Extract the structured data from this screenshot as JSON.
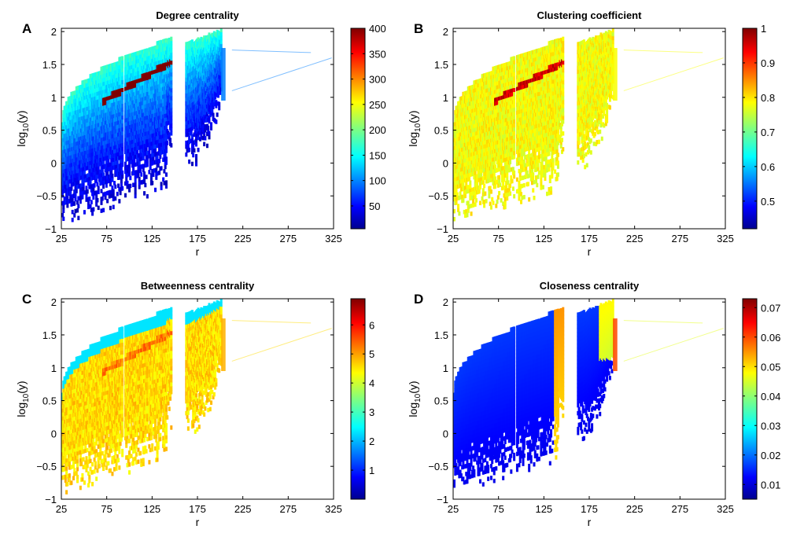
{
  "chart_data": [
    {
      "type": "heatmap",
      "panel_label": "A",
      "title": "Degree centrality",
      "xlabel": "r",
      "ylabel": "log10(y)",
      "xlim": [
        25,
        325
      ],
      "ylim": [
        -1,
        2.05
      ],
      "xticks": [
        "25",
        "75",
        "125",
        "175",
        "225",
        "275",
        "325"
      ],
      "yticks": [
        "-1",
        "-0.5",
        "0",
        "0.5",
        "1",
        "1.5",
        "2"
      ],
      "colorbar": {
        "min": 5,
        "max": 400,
        "ticks": [
          "50",
          "100",
          "150",
          "200",
          "250",
          "300",
          "350",
          "400"
        ],
        "tick_values": [
          50,
          100,
          150,
          200,
          250,
          300,
          350,
          400
        ]
      },
      "colormap": "jet",
      "base_value_fraction": 0.25,
      "band_boost_fraction": 0.75,
      "high_region": "bifurcation ridges"
    },
    {
      "type": "heatmap",
      "panel_label": "B",
      "title": "Clustering coefficient",
      "xlabel": "r",
      "ylabel": "log10(y)",
      "xlim": [
        25,
        325
      ],
      "ylim": [
        -1,
        2.05
      ],
      "xticks": [
        "25",
        "75",
        "125",
        "175",
        "225",
        "275",
        "325"
      ],
      "yticks": [
        "-1",
        "-0.5",
        "0",
        "0.5",
        "1",
        "1.5",
        "2"
      ],
      "colorbar": {
        "min": 0.42,
        "max": 1.0,
        "ticks": [
          "0.5",
          "0.6",
          "0.7",
          "0.8",
          "0.9",
          "1"
        ],
        "tick_values": [
          0.5,
          0.6,
          0.7,
          0.8,
          0.9,
          1.0
        ]
      },
      "colormap": "jet",
      "base_value_fraction": 0.62,
      "band_boost_fraction": 0.3,
      "high_region": "thin red ridges"
    },
    {
      "type": "heatmap",
      "panel_label": "C",
      "title": "Betweenness centrality",
      "xlabel": "r",
      "ylabel": "log10(y)",
      "xlim": [
        25,
        325
      ],
      "ylim": [
        -1,
        2.05
      ],
      "xticks": [
        "25",
        "75",
        "125",
        "175",
        "225",
        "275",
        "325"
      ],
      "yticks": [
        "-1",
        "-0.5",
        "0",
        "0.5",
        "1",
        "1.5",
        "2"
      ],
      "colorbar": {
        "min": 0,
        "max": 6.9,
        "ticks": [
          "1",
          "2",
          "3",
          "4",
          "5",
          "6"
        ],
        "tick_values": [
          1,
          2,
          3,
          4,
          5,
          6
        ]
      },
      "colormap": "jet",
      "base_value_fraction": 0.66,
      "band_boost_fraction": 0.1,
      "high_region": "upper boundary lower values"
    },
    {
      "type": "heatmap",
      "panel_label": "D",
      "title": "Closeness centrality",
      "xlabel": "r",
      "ylabel": "log10(y)",
      "xlim": [
        25,
        325
      ],
      "ylim": [
        -1,
        2.05
      ],
      "xticks": [
        "25",
        "75",
        "125",
        "175",
        "225",
        "275",
        "325"
      ],
      "yticks": [
        "-1",
        "-0.5",
        "0",
        "0.5",
        "1",
        "1.5",
        "2"
      ],
      "colorbar": {
        "min": 0.005,
        "max": 0.073,
        "ticks": [
          "0.01",
          "0.02",
          "0.03",
          "0.04",
          "0.05",
          "0.06",
          "0.07"
        ],
        "tick_values": [
          0.01,
          0.02,
          0.03,
          0.04,
          0.05,
          0.06,
          0.07
        ]
      },
      "colormap": "jet",
      "base_value_fraction": 0.12,
      "band_boost_fraction": 0.0,
      "high_region": "r near 140 and 195-205"
    }
  ]
}
